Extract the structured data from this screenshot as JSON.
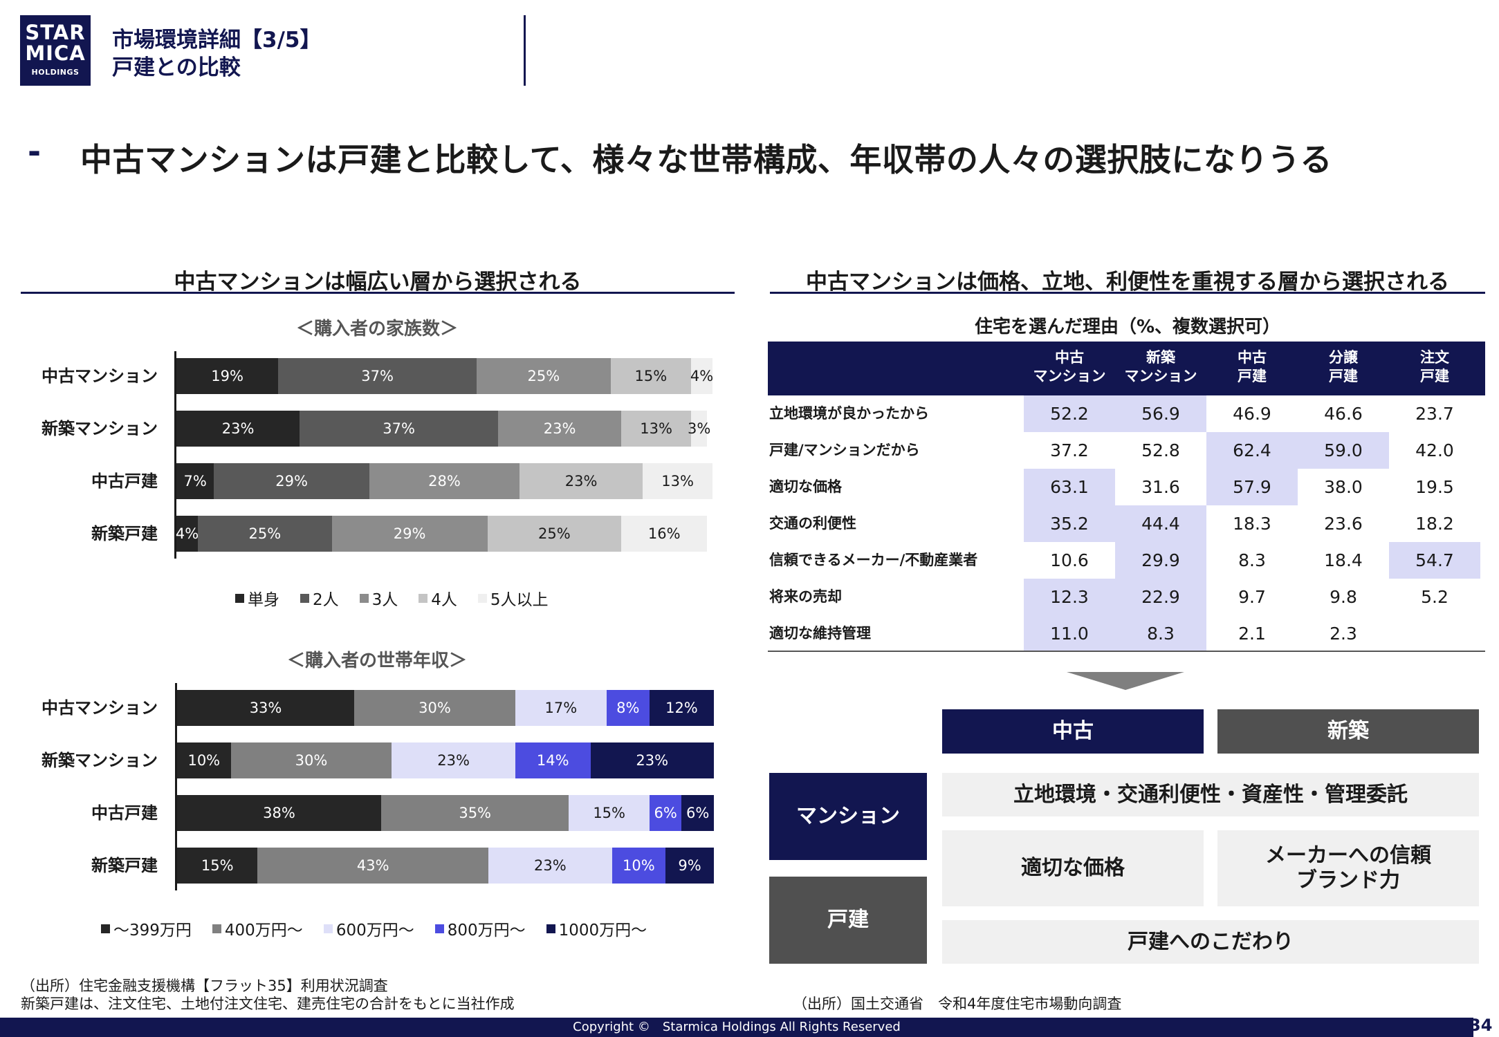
{
  "header": {
    "logo": {
      "line1": "STAR",
      "line2": "MICA",
      "line3": "HOLDINGS"
    },
    "title_line1": "市場環境詳細【3/5】",
    "title_line2": "戸建との比較"
  },
  "main_message": {
    "dash": "-",
    "text": "中古マンションは戸建と比較して、様々な世帯構成、年収帯の人々の選択肢になりうる"
  },
  "left": {
    "section_title": "中古マンションは幅広い層から選択される",
    "source_line1": "（出所）住宅金融支援機構【フラット35】利用状況調査",
    "source_line2": "新築戸建は、注文住宅、土地付注文住宅、建売住宅の合計をもとに当社作成"
  },
  "right": {
    "section_title": "中古マンションは価格、立地、利便性を重視する層から選択される",
    "table_title": "住宅を選んだ理由（%、複数選択可）",
    "table": {
      "columns": [
        {
          "line1": "中古",
          "line2": "マンション"
        },
        {
          "line1": "新築",
          "line2": "マンション"
        },
        {
          "line1": "中古",
          "line2": "戸建"
        },
        {
          "line1": "分譲",
          "line2": "戸建"
        },
        {
          "line1": "注文",
          "line2": "戸建"
        }
      ],
      "rows": [
        {
          "label": "立地環境が良かったから",
          "values": [
            "52.2",
            "56.9",
            "46.9",
            "46.6",
            "23.7"
          ],
          "highlight": [
            true,
            true,
            false,
            false,
            false
          ]
        },
        {
          "label": "戸建/マンションだから",
          "values": [
            "37.2",
            "52.8",
            "62.4",
            "59.0",
            "42.0"
          ],
          "highlight": [
            false,
            false,
            true,
            true,
            false
          ]
        },
        {
          "label": "適切な価格",
          "values": [
            "63.1",
            "31.6",
            "57.9",
            "38.0",
            "19.5"
          ],
          "highlight": [
            true,
            false,
            true,
            false,
            false
          ]
        },
        {
          "label": "交通の利便性",
          "values": [
            "35.2",
            "44.4",
            "18.3",
            "23.6",
            "18.2"
          ],
          "highlight": [
            true,
            true,
            false,
            false,
            false
          ]
        },
        {
          "label": "信頼できるメーカー/不動産業者",
          "values": [
            "10.6",
            "29.9",
            "8.3",
            "18.4",
            "54.7"
          ],
          "highlight": [
            false,
            true,
            false,
            false,
            true
          ]
        },
        {
          "label": "将来の売却",
          "values": [
            "12.3",
            "22.9",
            "9.7",
            "9.8",
            "5.2"
          ],
          "highlight": [
            true,
            true,
            false,
            false,
            false
          ]
        },
        {
          "label": "適切な維持管理",
          "values": [
            "11.0",
            "8.3",
            "2.1",
            "2.3",
            ""
          ],
          "highlight": [
            true,
            true,
            false,
            false,
            false
          ]
        }
      ],
      "highlight_color": "#d9daf6"
    },
    "matrix": {
      "col_used": "中古",
      "col_new": "新築",
      "row_mansion": "マンション",
      "row_house": "戸建",
      "box_common": "立地環境・交通利便性・資産性・管理委託",
      "box_price": "適切な価格",
      "box_trust_line1": "メーカーへの信頼",
      "box_trust_line2": "ブランド力",
      "box_house": "戸建へのこだわり"
    },
    "source": "（出所）国土交通省　令和4年度住宅市場動向調査"
  },
  "colors": {
    "navy": "#121650",
    "dark_gray": "#505050",
    "light_gray": "#f0f0f0",
    "accent_blue": "#4c4ce0"
  },
  "chart_data": [
    {
      "type": "bar",
      "orientation": "horizontal",
      "stacked": true,
      "title": "＜購入者の家族数＞",
      "categories": [
        "中古マンション",
        "新築マンション",
        "中古戸建",
        "新築戸建"
      ],
      "series": [
        {
          "name": "単身",
          "values": [
            19,
            23,
            7,
            4
          ],
          "color": "#262626",
          "label_color": "#ffffff"
        },
        {
          "name": "2人",
          "values": [
            37,
            37,
            29,
            25
          ],
          "color": "#595959",
          "label_color": "#ffffff"
        },
        {
          "name": "3人",
          "values": [
            25,
            23,
            28,
            29
          ],
          "color": "#8c8c8c",
          "label_color": "#ffffff"
        },
        {
          "name": "4人",
          "values": [
            15,
            13,
            23,
            25
          ],
          "color": "#c4c4c4",
          "label_color": "#1a1a1a"
        },
        {
          "name": "5人以上",
          "values": [
            4,
            3,
            13,
            16
          ],
          "color": "#efefef",
          "label_color": "#1a1a1a"
        }
      ],
      "unit": "%",
      "xlim": [
        0,
        100
      ],
      "legend": "bottom"
    },
    {
      "type": "bar",
      "orientation": "horizontal",
      "stacked": true,
      "title": "＜購入者の世帯年収＞",
      "categories": [
        "中古マンション",
        "新築マンション",
        "中古戸建",
        "新築戸建"
      ],
      "series": [
        {
          "name": "～399万円",
          "values": [
            33,
            10,
            38,
            15
          ],
          "color": "#262626",
          "label_color": "#ffffff"
        },
        {
          "name": "400万円～",
          "values": [
            30,
            30,
            35,
            43
          ],
          "color": "#808080",
          "label_color": "#ffffff"
        },
        {
          "name": "600万円～",
          "values": [
            17,
            23,
            15,
            23
          ],
          "color": "#dedff8",
          "label_color": "#1a1a1a"
        },
        {
          "name": "800万円～",
          "values": [
            8,
            14,
            6,
            10
          ],
          "color": "#4c4ce0",
          "label_color": "#ffffff"
        },
        {
          "name": "1000万円～",
          "values": [
            12,
            23,
            6,
            9
          ],
          "color": "#121650",
          "label_color": "#ffffff"
        }
      ],
      "unit": "%",
      "xlim": [
        0,
        100
      ],
      "legend": "bottom"
    }
  ],
  "footer": {
    "copyright": "Copyright ©　Starmica Holdings All Rights Reserved",
    "page": "34"
  }
}
